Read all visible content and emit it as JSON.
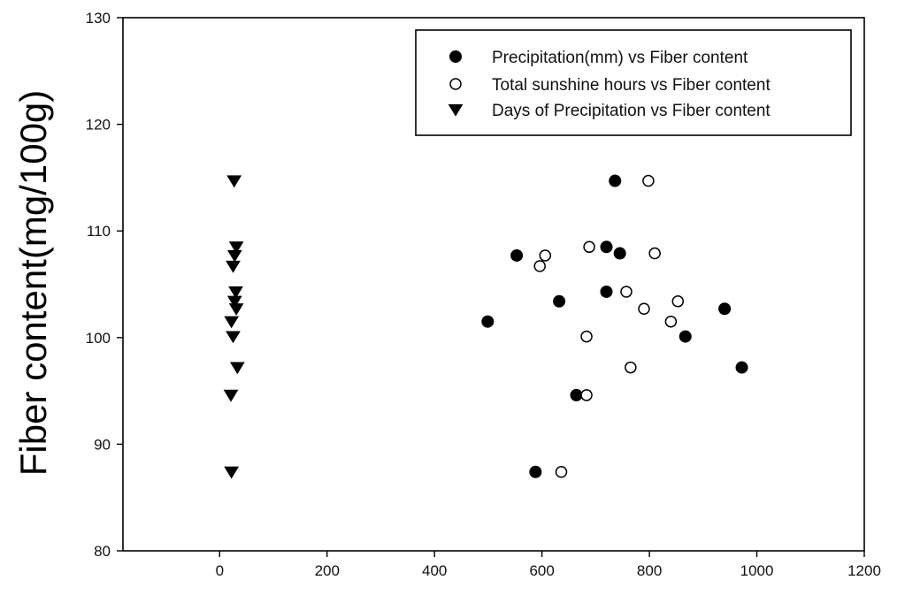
{
  "chart_data": {
    "type": "scatter",
    "title": "",
    "xlabel": "",
    "ylabel": "Fiber content(mg/100g)",
    "xlim": [
      -180,
      1200
    ],
    "ylim": [
      80,
      130
    ],
    "xticks": [
      0,
      200,
      400,
      600,
      800,
      1000,
      1200
    ],
    "yticks": [
      80,
      90,
      100,
      110,
      120,
      130
    ],
    "grid": false,
    "legend_position": "top-right",
    "series": [
      {
        "name": "Precipitation(mm)  vs Fiber content",
        "marker": "filled-circle",
        "points": [
          {
            "x": 736,
            "y": 114.7
          },
          {
            "x": 720,
            "y": 108.5
          },
          {
            "x": 745,
            "y": 107.9
          },
          {
            "x": 553,
            "y": 107.7
          },
          {
            "x": 720,
            "y": 104.3
          },
          {
            "x": 632,
            "y": 103.4
          },
          {
            "x": 940,
            "y": 102.7
          },
          {
            "x": 499,
            "y": 101.5
          },
          {
            "x": 867,
            "y": 100.1
          },
          {
            "x": 972,
            "y": 97.2
          },
          {
            "x": 664,
            "y": 94.6
          },
          {
            "x": 588,
            "y": 87.4
          }
        ]
      },
      {
        "name": "Total sunshine hours vs Fiber content",
        "marker": "open-circle",
        "points": [
          {
            "x": 798,
            "y": 114.7
          },
          {
            "x": 688,
            "y": 108.5
          },
          {
            "x": 810,
            "y": 107.9
          },
          {
            "x": 606,
            "y": 107.7
          },
          {
            "x": 596,
            "y": 106.7
          },
          {
            "x": 757,
            "y": 104.3
          },
          {
            "x": 853,
            "y": 103.4
          },
          {
            "x": 790,
            "y": 102.7
          },
          {
            "x": 840,
            "y": 101.5
          },
          {
            "x": 683,
            "y": 100.1
          },
          {
            "x": 765,
            "y": 97.2
          },
          {
            "x": 683,
            "y": 94.6
          },
          {
            "x": 636,
            "y": 87.4
          }
        ]
      },
      {
        "name": "Days of Precipitation vs Fiber content",
        "marker": "filled-triangle-down",
        "points": [
          {
            "x": 27,
            "y": 114.7
          },
          {
            "x": 31,
            "y": 108.5
          },
          {
            "x": 28,
            "y": 107.7
          },
          {
            "x": 25,
            "y": 106.7
          },
          {
            "x": 30,
            "y": 104.3
          },
          {
            "x": 28,
            "y": 103.4
          },
          {
            "x": 31,
            "y": 102.7
          },
          {
            "x": 22,
            "y": 101.5
          },
          {
            "x": 25,
            "y": 100.1
          },
          {
            "x": 33,
            "y": 97.2
          },
          {
            "x": 21,
            "y": 94.6
          },
          {
            "x": 22,
            "y": 87.4
          }
        ]
      }
    ]
  }
}
